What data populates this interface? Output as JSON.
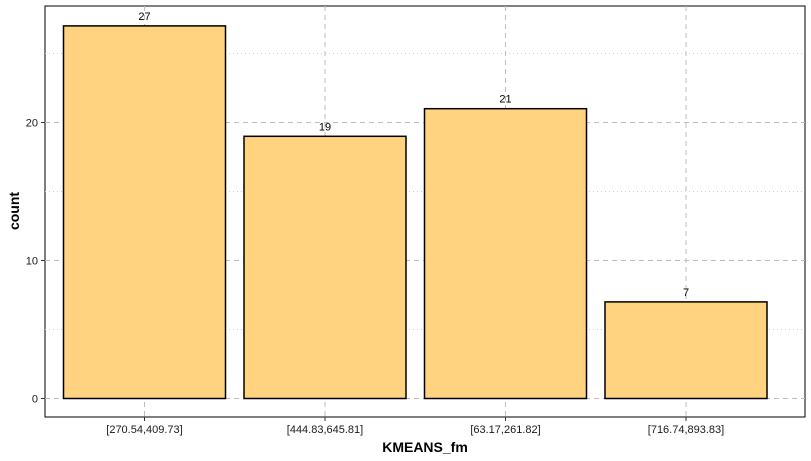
{
  "chart_data": {
    "type": "bar",
    "title": "",
    "xlabel": "KMEANS_fm",
    "ylabel": "count",
    "categories": [
      "[270.54,409.73]",
      "[444.83,645.81]",
      "[63.17,261.82]",
      "[716.74,893.83]"
    ],
    "values": [
      27,
      19,
      21,
      7
    ],
    "ylim": [
      0,
      28.3
    ],
    "yticks": [
      0,
      10,
      20
    ],
    "grid": true,
    "legend": "none",
    "bar_color": "#FFD380",
    "bar_edge_color": "#000000"
  }
}
